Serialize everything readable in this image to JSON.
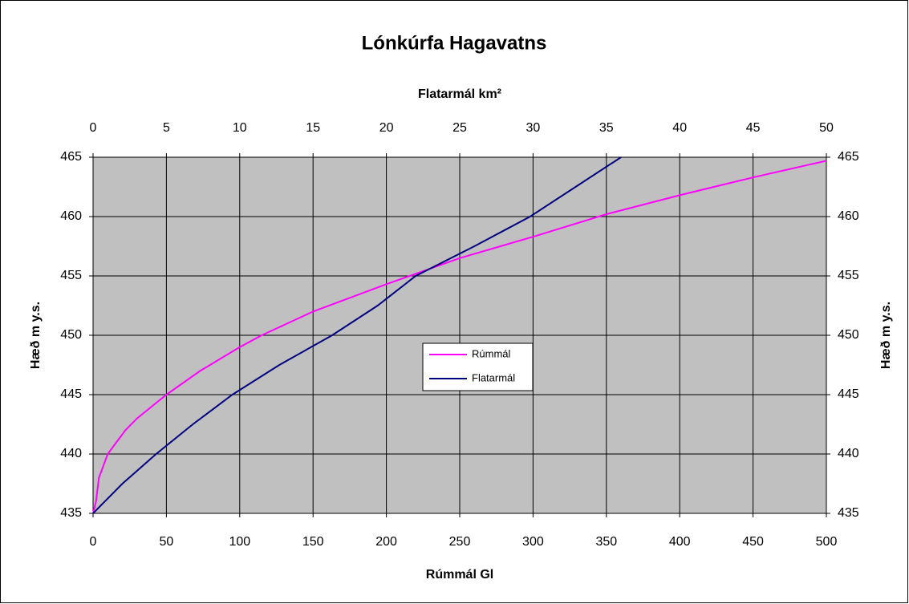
{
  "chart_data": {
    "type": "line",
    "title": "Lónkúrfa Hagavatns",
    "xlabel": "Rúmmál Gl",
    "x2label": "Flatarmál km²",
    "ylabel": "Hæð m y.s.",
    "y2label": "Hæð m y.s.",
    "xlim": [
      0,
      500
    ],
    "xticks": [
      0,
      50,
      100,
      150,
      200,
      250,
      300,
      350,
      400,
      450,
      500
    ],
    "x2lim": [
      0,
      50
    ],
    "x2ticks": [
      0,
      5,
      10,
      15,
      20,
      25,
      30,
      35,
      40,
      45,
      50
    ],
    "ylim": [
      435,
      465
    ],
    "yticks": [
      435,
      440,
      445,
      450,
      455,
      460,
      465
    ],
    "y2lim": [
      435,
      465
    ],
    "y2ticks": [
      435,
      440,
      445,
      450,
      455,
      460,
      465
    ],
    "grid": true,
    "background": "#c0c0c0",
    "legend": "center",
    "series": [
      {
        "name": "Rúmmál",
        "color": "#ff00ff",
        "x": [
          0,
          2,
          4,
          10,
          22,
          30,
          50,
          73,
          100,
          115,
          150,
          200,
          250,
          300,
          350,
          400,
          450,
          500
        ],
        "values": [
          435,
          436,
          438,
          440,
          442,
          443,
          445,
          447,
          449,
          450,
          452,
          454.3,
          456.5,
          458.3,
          460.2,
          461.8,
          463.3,
          464.7
        ]
      },
      {
        "name": "Flatarmál",
        "color": "#000080",
        "xaxis": "x2",
        "x": [
          0,
          2,
          4.3,
          6.8,
          9.5,
          12.7,
          16.3,
          19.4,
          22,
          26,
          29.8,
          32.9,
          36
        ],
        "values": [
          435,
          437.5,
          440,
          442.5,
          445,
          447.5,
          450,
          452.5,
          455,
          457.5,
          460,
          462.5,
          465
        ]
      }
    ]
  }
}
